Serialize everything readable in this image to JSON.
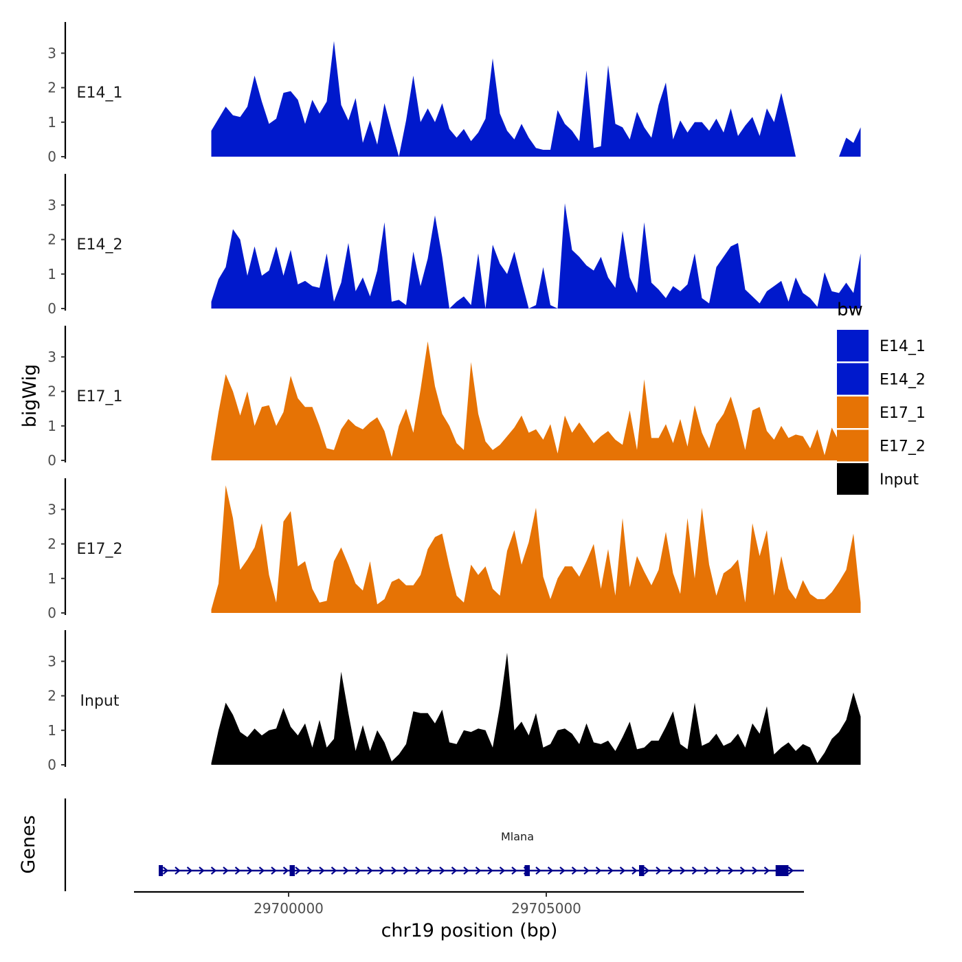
{
  "chart_data": {
    "type": "area",
    "title": "",
    "xlabel": "chr19 position (bp)",
    "ylabel": "bigWig",
    "genes_label": "Genes",
    "x_range": [
      29697000,
      29710000
    ],
    "signal_range": [
      29698500,
      29711100
    ],
    "x_ticks": [
      29700000,
      29705000
    ],
    "x_tick_labels": [
      "29700000",
      "29705000"
    ],
    "ylim": [
      0,
      3.9
    ],
    "y_ticks": [
      0,
      1,
      2,
      3
    ],
    "y_tick_labels": [
      "0",
      "1",
      "2",
      "3"
    ],
    "colors": {
      "E14_1": "#0019CC",
      "E14_2": "#0019CC",
      "E17_1": "#E67305",
      "E17_2": "#E67305",
      "Input": "#000000"
    },
    "legend": {
      "title": "bw",
      "position": "right",
      "entries": [
        {
          "name": "E14_1",
          "color": "#0019CC"
        },
        {
          "name": "E14_2",
          "color": "#0019CC"
        },
        {
          "name": "E17_1",
          "color": "#E67305"
        },
        {
          "name": "E17_2",
          "color": "#E67305"
        },
        {
          "name": "Input",
          "color": "#000000"
        }
      ]
    },
    "series": [
      {
        "name": "E14_1",
        "color": "#0019CC",
        "values": [
          0.75,
          1.1,
          1.45,
          1.2,
          1.15,
          1.45,
          2.35,
          1.6,
          0.95,
          1.1,
          1.85,
          1.9,
          1.65,
          0.95,
          1.65,
          1.25,
          1.6,
          3.35,
          1.5,
          1.05,
          1.7,
          0.4,
          1.05,
          0.35,
          1.55,
          0.75,
          0.0,
          1.05,
          2.35,
          1.0,
          1.4,
          1.0,
          1.55,
          0.8,
          0.55,
          0.8,
          0.45,
          0.7,
          1.1,
          2.85,
          1.25,
          0.75,
          0.5,
          0.95,
          0.55,
          0.25,
          0.2,
          0.2,
          1.35,
          0.95,
          0.75,
          0.45,
          2.5,
          0.25,
          0.3,
          2.65,
          0.95,
          0.85,
          0.5,
          1.3,
          0.85,
          0.55,
          1.5,
          2.15,
          0.5,
          1.05,
          0.7,
          1.0,
          1.0,
          0.75,
          1.1,
          0.7,
          1.4,
          0.6,
          0.9,
          1.15,
          0.6,
          1.4,
          1.0,
          1.85,
          0.95,
          0.0,
          0.0,
          0.0,
          0.0,
          0.0,
          0.0,
          0.0,
          0.55,
          0.4,
          0.85
        ]
      },
      {
        "name": "E14_2",
        "color": "#0019CC",
        "values": [
          0.2,
          0.85,
          1.2,
          2.3,
          2.0,
          0.95,
          1.8,
          0.95,
          1.1,
          1.8,
          0.95,
          1.7,
          0.7,
          0.8,
          0.65,
          0.6,
          1.6,
          0.2,
          0.75,
          1.9,
          0.5,
          0.9,
          0.35,
          1.1,
          2.5,
          0.2,
          0.25,
          0.1,
          1.65,
          0.65,
          1.45,
          2.7,
          1.5,
          0.0,
          0.2,
          0.35,
          0.1,
          1.6,
          0.0,
          1.85,
          1.3,
          1.0,
          1.65,
          0.8,
          0.0,
          0.1,
          1.2,
          0.1,
          0.0,
          3.05,
          1.7,
          1.5,
          1.25,
          1.1,
          1.5,
          0.9,
          0.6,
          2.25,
          0.9,
          0.45,
          2.5,
          0.75,
          0.55,
          0.3,
          0.65,
          0.5,
          0.7,
          1.6,
          0.3,
          0.15,
          1.2,
          1.5,
          1.8,
          1.9,
          0.55,
          0.35,
          0.15,
          0.5,
          0.65,
          0.8,
          0.2,
          0.9,
          0.45,
          0.3,
          0.05,
          1.05,
          0.5,
          0.45,
          0.75,
          0.45,
          1.6
        ]
      },
      {
        "name": "E17_1",
        "color": "#E67305",
        "values": [
          0.1,
          1.4,
          2.5,
          2.0,
          1.3,
          2.0,
          1.0,
          1.55,
          1.6,
          1.0,
          1.4,
          2.45,
          1.8,
          1.55,
          1.55,
          1.0,
          0.35,
          0.3,
          0.9,
          1.2,
          1.0,
          0.9,
          1.1,
          1.25,
          0.85,
          0.1,
          1.0,
          1.5,
          0.8,
          2.05,
          3.45,
          2.15,
          1.35,
          1.0,
          0.5,
          0.3,
          2.85,
          1.35,
          0.55,
          0.3,
          0.45,
          0.7,
          0.95,
          1.3,
          0.8,
          0.9,
          0.6,
          1.05,
          0.2,
          1.3,
          0.8,
          1.1,
          0.8,
          0.5,
          0.7,
          0.85,
          0.6,
          0.45,
          1.45,
          0.3,
          2.35,
          0.65,
          0.65,
          1.05,
          0.5,
          1.2,
          0.4,
          1.6,
          0.8,
          0.35,
          1.05,
          1.35,
          1.85,
          1.15,
          0.3,
          1.45,
          1.55,
          0.85,
          0.6,
          1.0,
          0.65,
          0.75,
          0.7,
          0.35,
          0.9,
          0.15,
          0.95,
          0.55,
          0.6,
          0.45,
          0.4
        ]
      },
      {
        "name": "E17_2",
        "color": "#E67305",
        "values": [
          0.1,
          0.85,
          3.7,
          2.75,
          1.25,
          1.55,
          1.9,
          2.6,
          1.1,
          0.3,
          2.65,
          2.95,
          1.35,
          1.5,
          0.7,
          0.3,
          0.35,
          1.5,
          1.9,
          1.4,
          0.85,
          0.65,
          1.5,
          0.25,
          0.4,
          0.9,
          1.0,
          0.8,
          0.8,
          1.1,
          1.85,
          2.2,
          2.3,
          1.35,
          0.5,
          0.3,
          1.4,
          1.1,
          1.35,
          0.7,
          0.5,
          1.8,
          2.4,
          1.4,
          2.05,
          3.05,
          1.05,
          0.4,
          1.0,
          1.35,
          1.35,
          1.05,
          1.5,
          2.0,
          0.7,
          1.85,
          0.5,
          2.75,
          0.75,
          1.65,
          1.2,
          0.8,
          1.25,
          2.35,
          1.15,
          0.55,
          2.75,
          1.0,
          3.05,
          1.4,
          0.5,
          1.15,
          1.3,
          1.55,
          0.3,
          2.6,
          1.65,
          2.4,
          0.5,
          1.65,
          0.7,
          0.4,
          0.95,
          0.55,
          0.4,
          0.4,
          0.6,
          0.9,
          1.25,
          2.3,
          0.3
        ]
      },
      {
        "name": "Input",
        "color": "#000000",
        "values": [
          0.05,
          1.0,
          1.8,
          1.45,
          0.95,
          0.8,
          1.05,
          0.85,
          1.0,
          1.05,
          1.65,
          1.1,
          0.85,
          1.2,
          0.5,
          1.3,
          0.5,
          0.75,
          2.7,
          1.5,
          0.4,
          1.15,
          0.4,
          1.0,
          0.65,
          0.1,
          0.3,
          0.6,
          1.55,
          1.5,
          1.5,
          1.2,
          1.6,
          0.65,
          0.6,
          1.0,
          0.95,
          1.05,
          1.0,
          0.5,
          1.7,
          3.25,
          1.0,
          1.25,
          0.85,
          1.5,
          0.5,
          0.6,
          1.0,
          1.05,
          0.9,
          0.6,
          1.2,
          0.65,
          0.6,
          0.7,
          0.4,
          0.8,
          1.25,
          0.45,
          0.5,
          0.7,
          0.7,
          1.1,
          1.55,
          0.6,
          0.45,
          1.8,
          0.55,
          0.65,
          0.9,
          0.55,
          0.65,
          0.9,
          0.5,
          1.2,
          0.9,
          1.7,
          0.3,
          0.5,
          0.65,
          0.4,
          0.6,
          0.5,
          0.05,
          0.35,
          0.75,
          0.95,
          1.3,
          2.1,
          1.4
        ]
      }
    ],
    "gene": {
      "name": "Mlana",
      "start": 29697500,
      "end": 29710000,
      "strand": "+",
      "exons": [
        [
          29697480,
          29697560
        ],
        [
          29700020,
          29700120
        ],
        [
          29704580,
          29704680
        ],
        [
          29706800,
          29706900
        ],
        [
          29709450,
          29709700
        ]
      ]
    }
  }
}
